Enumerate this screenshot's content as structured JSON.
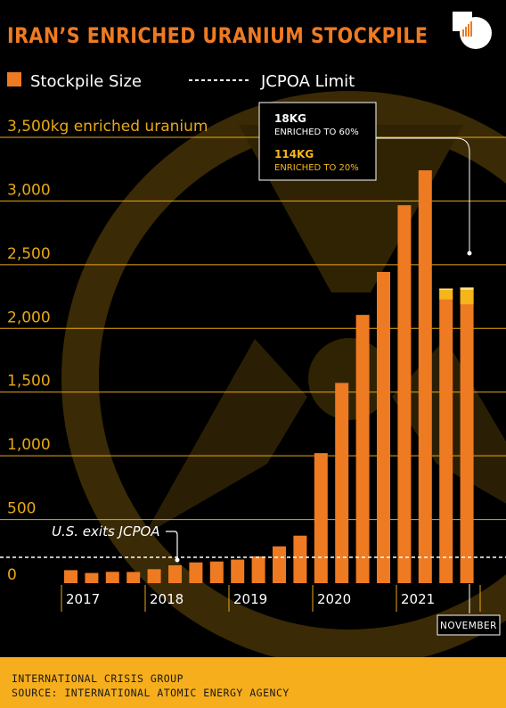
{
  "header": {
    "title": "IRAN’S ENRICHED URANIUM STOCKPILE"
  },
  "legend": {
    "stockpile_label": "Stockpile Size",
    "limit_label": "JCPOA Limit"
  },
  "callout": {
    "line1_value": "18KG",
    "line1_desc": "ENRICHED TO 60%",
    "line2_value": "114KG",
    "line2_desc": "ENRICHED TO 20%"
  },
  "annotation": {
    "us_exit": "U.S. exits JCPOA",
    "november": "NOVEMBER"
  },
  "footer": {
    "line1": "INTERNATIONAL CRISIS GROUP",
    "line2": "SOURCE: INTERNATIONAL ATOMIC ENERGY AGENCY"
  },
  "colors": {
    "background": "#000000",
    "bar": "#ee7a22",
    "bar_20pct": "#f6b51a",
    "bar_60pct": "#fde588",
    "grid": "#e8a814",
    "tick_text": "#e8a814",
    "footer_bg": "#f6ae1c"
  },
  "chart_data": {
    "type": "bar",
    "title": "IRAN’S ENRICHED URANIUM STOCKPILE",
    "ylabel": "3,500kg enriched uranium",
    "ylim": [
      0,
      3500
    ],
    "yticks": [
      0,
      500,
      1000,
      1500,
      2000,
      2500,
      3000,
      3500
    ],
    "ytick_labels": [
      "0",
      "500",
      "1,000",
      "1,500",
      "2,000",
      "2,500",
      "3,000",
      "3,500kg enriched uranium"
    ],
    "x_year_labels": [
      "2017",
      "2018",
      "2019",
      "2020",
      "2021"
    ],
    "jcpoa_limit": 202.8,
    "grid": true,
    "legend_position": "top",
    "series": [
      {
        "name": "Stockpile Size",
        "values": [
          102,
          80,
          89,
          88,
          110,
          140,
          163,
          170,
          185,
          210,
          289,
          373,
          1021,
          1572,
          2106,
          2443,
          2967,
          3241,
          2313,
          2321
        ]
      }
    ],
    "enriched_20pct_segments": [
      {
        "bar_index": 18,
        "value": 84
      },
      {
        "bar_index": 19,
        "value": 114
      }
    ],
    "enriched_60pct_segments": [
      {
        "bar_index": 18,
        "value": 2
      },
      {
        "bar_index": 19,
        "value": 18
      }
    ]
  }
}
